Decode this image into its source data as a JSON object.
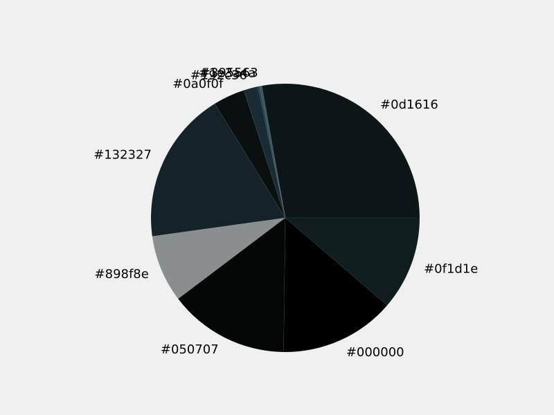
{
  "chart_data": {
    "type": "pie",
    "categories": [
      "#0d1616",
      "#395563",
      "#1e3a4a",
      "#192c36",
      "#0a0f0f",
      "#132327",
      "#898f8e",
      "#050707",
      "#000000",
      "#0f1d1e"
    ],
    "values": [
      27.8,
      0.3,
      0.2,
      1.7,
      3.8,
      18.4,
      8.1,
      14.5,
      13.9,
      11.3
    ],
    "colors": [
      "#0d1616",
      "#395563",
      "#1e3a4a",
      "#192c36",
      "#0a0f0f",
      "#132327",
      "#898f8e",
      "#050707",
      "#000000",
      "#0f1d1e"
    ],
    "start_angle_deg": 0,
    "direction": "counterclockwise",
    "title": "",
    "legend": "none"
  }
}
